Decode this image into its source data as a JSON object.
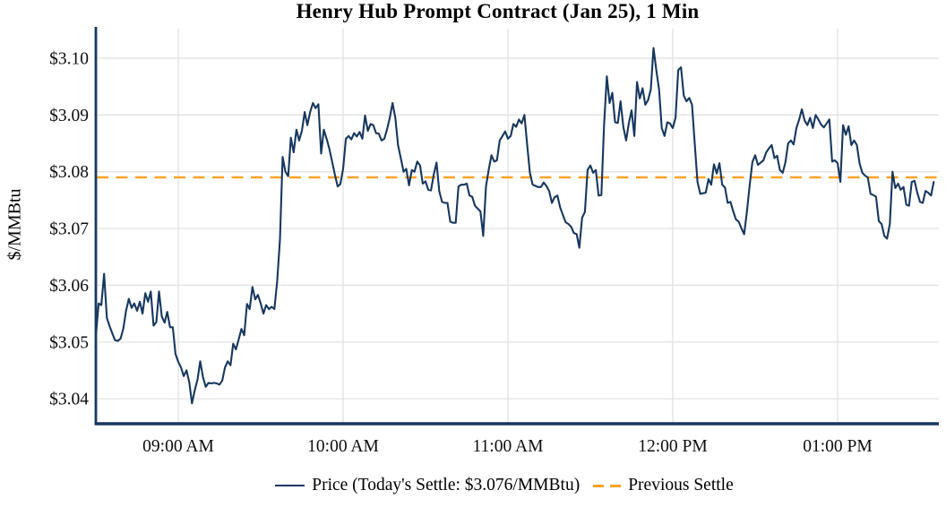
{
  "chart_data": {
    "type": "line",
    "title": "Henry Hub Prompt Contract (Jan 25), 1 Min",
    "xlabel": "",
    "ylabel": "$/MMBtu",
    "legend_position": "bottom",
    "grid": true,
    "today_settle": 3.076,
    "previous_settle": 3.079,
    "colors": {
      "price_line": "#17375e",
      "previous_settle_line": "#ffa329",
      "grid": "#e2e2e2",
      "axis": "#17375e",
      "text": "#000000"
    },
    "x_axis": {
      "start_time": "08:30 AM",
      "end_time": "01:35 PM",
      "interval_minutes": 1,
      "tick_labels": [
        "09:00 AM",
        "10:00 AM",
        "11:00 AM",
        "12:00 PM",
        "01:00 PM"
      ],
      "tick_offsets_minutes": [
        30,
        90,
        150,
        210,
        270
      ]
    },
    "y_axis": {
      "tick_values": [
        3.04,
        3.05,
        3.06,
        3.07,
        3.08,
        3.09,
        3.1
      ],
      "tick_labels": [
        "$3.04",
        "$3.05",
        "$3.06",
        "$3.07",
        "$3.08",
        "$3.09",
        "$3.10"
      ],
      "ylim": [
        3.0356,
        3.1052
      ]
    },
    "series": [
      {
        "name": "Price (Today's Settle: $3.076/MMBtu)",
        "type": "line",
        "color": "#17375e",
        "prices_1min": [
          3.051,
          3.0568,
          3.0565,
          3.062,
          3.0542,
          3.0528,
          3.0515,
          3.0503,
          3.0502,
          3.0506,
          3.0524,
          3.0555,
          3.0576,
          3.056,
          3.0568,
          3.0555,
          3.0571,
          3.055,
          3.0586,
          3.0571,
          3.0589,
          3.0529,
          3.0535,
          3.0589,
          3.0545,
          3.0534,
          3.0553,
          3.0526,
          3.0526,
          3.0479,
          3.0465,
          3.0455,
          3.044,
          3.045,
          3.0429,
          3.0392,
          3.0415,
          3.0434,
          3.0466,
          3.0438,
          3.0421,
          3.0428,
          3.0427,
          3.0428,
          3.0427,
          3.0425,
          3.0432,
          3.0455,
          3.0466,
          3.0459,
          3.0497,
          3.0487,
          3.0505,
          3.0523,
          3.0512,
          3.0567,
          3.0558,
          3.0597,
          3.0575,
          3.0583,
          3.0568,
          3.055,
          3.0565,
          3.0558,
          3.0562,
          3.0558,
          3.0607,
          3.068,
          3.0826,
          3.08,
          3.0792,
          3.086,
          3.0834,
          3.0874,
          3.0855,
          3.0872,
          3.0905,
          3.0882,
          3.0905,
          3.0921,
          3.0912,
          3.0919,
          3.0832,
          3.0874,
          3.0858,
          3.084,
          3.0818,
          3.0795,
          3.0774,
          3.0778,
          3.0805,
          3.0858,
          3.0863,
          3.0857,
          3.0868,
          3.0862,
          3.087,
          3.0858,
          3.0899,
          3.0872,
          3.0884,
          3.0882,
          3.0868,
          3.0867,
          3.0855,
          3.0858,
          3.0875,
          3.0895,
          3.0921,
          3.0895,
          3.0847,
          3.0824,
          3.08,
          3.0805,
          3.0776,
          3.0803,
          3.08,
          3.0818,
          3.0811,
          3.0779,
          3.0783,
          3.0768,
          3.0767,
          3.0795,
          3.0816,
          3.0766,
          3.0747,
          3.0745,
          3.0745,
          3.0712,
          3.071,
          3.071,
          3.0774,
          3.0777,
          3.0777,
          3.0779,
          3.0758,
          3.0756,
          3.074,
          3.0735,
          3.073,
          3.0687,
          3.0774,
          3.0803,
          3.0829,
          3.0818,
          3.082,
          3.0855,
          3.0863,
          3.0871,
          3.0858,
          3.0863,
          3.0884,
          3.0879,
          3.0892,
          3.0885,
          3.09,
          3.0847,
          3.0798,
          3.0777,
          3.0775,
          3.0773,
          3.0773,
          3.0781,
          3.0775,
          3.0766,
          3.0745,
          3.0755,
          3.0758,
          3.0737,
          3.0724,
          3.0711,
          3.0708,
          3.0703,
          3.0692,
          3.069,
          3.0666,
          3.0719,
          3.0729,
          3.0803,
          3.0811,
          3.0798,
          3.0803,
          3.0758,
          3.0759,
          3.0882,
          3.0968,
          3.0921,
          3.0939,
          3.0887,
          3.0886,
          3.0924,
          3.0879,
          3.0855,
          3.0885,
          3.0908,
          3.0863,
          3.0958,
          3.0929,
          3.0947,
          3.0918,
          3.0926,
          3.0945,
          3.1018,
          3.0979,
          3.0945,
          3.0877,
          3.0863,
          3.0887,
          3.0885,
          3.0877,
          3.0895,
          3.0979,
          3.0984,
          3.0934,
          3.0924,
          3.093,
          3.0918,
          3.085,
          3.0782,
          3.0761,
          3.0762,
          3.0763,
          3.0787,
          3.0777,
          3.0813,
          3.0797,
          3.0815,
          3.0777,
          3.0772,
          3.0745,
          3.0747,
          3.073,
          3.0716,
          3.0712,
          3.07,
          3.069,
          3.073,
          3.0777,
          3.0817,
          3.0829,
          3.0812,
          3.0816,
          3.082,
          3.0834,
          3.0841,
          3.0847,
          3.0824,
          3.0828,
          3.0803,
          3.0798,
          3.0816,
          3.085,
          3.0855,
          3.0848,
          3.0877,
          3.0892,
          3.091,
          3.089,
          3.0882,
          3.0895,
          3.0877,
          3.09,
          3.0892,
          3.0883,
          3.0878,
          3.0885,
          3.0892,
          3.0818,
          3.082,
          3.0815,
          3.0782,
          3.0882,
          3.0865,
          3.088,
          3.0847,
          3.0855,
          3.0847,
          3.0815,
          3.0798,
          3.0793,
          3.079,
          3.0761,
          3.0759,
          3.0756,
          3.0713,
          3.0708,
          3.0687,
          3.0682,
          3.0708,
          3.08,
          3.0771,
          3.0779,
          3.0768,
          3.0773,
          3.0742,
          3.074,
          3.0782,
          3.0784,
          3.0763,
          3.0747,
          3.0745,
          3.0766,
          3.0763,
          3.0758,
          3.0782
        ]
      },
      {
        "name": "Previous Settle",
        "type": "dashed-horizontal-line",
        "color": "#ffa329",
        "value": 3.079
      }
    ]
  }
}
